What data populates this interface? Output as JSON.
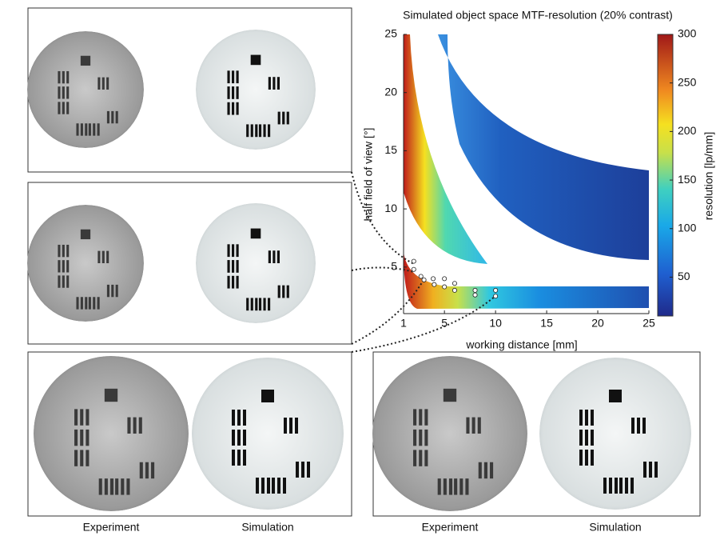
{
  "chart_data": {
    "type": "band-map",
    "title": "Simulated object space MTF-resolution (20% contrast)",
    "xlabel": "working distance [mm]",
    "ylabel": "half field of view [°]",
    "xlim": [
      1,
      25
    ],
    "xticks": [
      1,
      5,
      10,
      15,
      20,
      25
    ],
    "ylim": [
      1,
      25
    ],
    "yticks": [
      5,
      10,
      15,
      20,
      25
    ],
    "colorbar": {
      "label": "resolution [lp/mm]",
      "lim": [
        10,
        300
      ],
      "ticks": [
        50,
        100,
        150,
        200,
        250,
        300
      ]
    },
    "points": {
      "color": "#ffffff",
      "x": [
        2,
        2,
        2.7,
        3,
        3.9,
        4,
        5,
        5,
        6,
        6,
        8,
        8,
        10,
        10
      ],
      "y": [
        5.5,
        4.8,
        4.2,
        3.9,
        4,
        3.5,
        4,
        3.3,
        3.6,
        3,
        3,
        2.6,
        3,
        2.5
      ]
    }
  },
  "captions": [
    "Experiment",
    "Simulation",
    "Experiment",
    "Simulation"
  ]
}
